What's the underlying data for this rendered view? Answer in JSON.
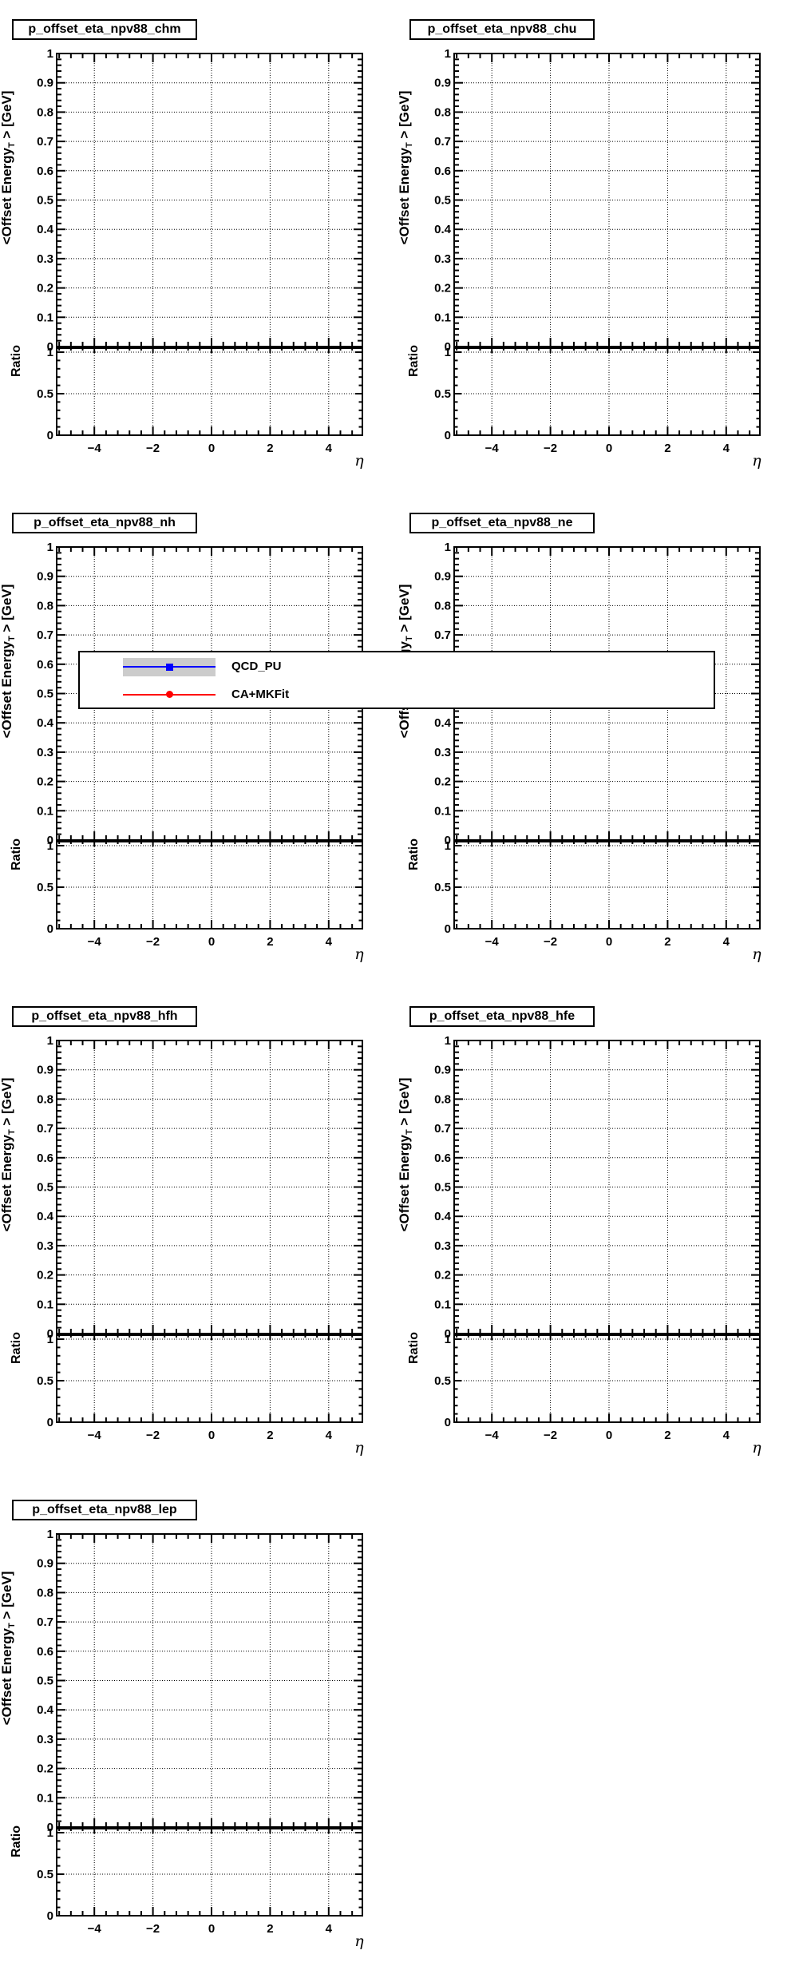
{
  "colors": {
    "background": "#ffffff",
    "frame": "#000000",
    "grid": "#000000",
    "qcd_pu": "#0000ff",
    "ca_mkfit": "#ff0000",
    "error_band": "#cccccc"
  },
  "axes": {
    "x": {
      "label": "η",
      "range": [
        -5.3,
        5.15
      ],
      "major_ticks": [
        -4,
        -2,
        0,
        2,
        4
      ],
      "tick_labels": [
        "−4",
        "−2",
        "0",
        "2",
        "4"
      ],
      "minor_step": 0.4
    },
    "main_y": {
      "label_pre": "<Offset Energy",
      "label_sub": "T",
      "label_post": " > [GeV]",
      "range": [
        0,
        1
      ],
      "tick_labels": [
        "0",
        "0.1",
        "0.2",
        "0.3",
        "0.4",
        "0.5",
        "0.6",
        "0.7",
        "0.8",
        "0.9",
        "1"
      ],
      "minor_step": 0.02
    },
    "ratio_y": {
      "label": "Ratio",
      "range": [
        0,
        1.05
      ],
      "major_ticks": [
        0,
        0.5,
        1
      ],
      "tick_labels": [
        "0",
        "0.5",
        "1"
      ],
      "minor_step": 0.1
    }
  },
  "legend": {
    "entries": [
      {
        "label": "QCD_PU",
        "color": "#0000ff",
        "marker": "square",
        "band_color": "#cccccc"
      },
      {
        "label": "CA+MKFit",
        "color": "#ff0000",
        "marker": "circle",
        "band_color": null
      }
    ]
  },
  "chart_data": [
    {
      "type": "line",
      "title": "p_offset_eta_npv88_chm",
      "xlabel": "η",
      "ylabel": "<Offset Energy_T> [GeV]",
      "xlim": [
        -5.3,
        5.15
      ],
      "ylim": [
        0,
        1
      ],
      "grid": true,
      "series": [
        {
          "name": "QCD_PU",
          "x": [],
          "y": []
        },
        {
          "name": "CA+MKFit",
          "x": [],
          "y": []
        }
      ],
      "ratio_panel": {
        "ylabel": "Ratio",
        "ylim": [
          0,
          1.05
        ],
        "yticks": [
          0,
          0.5,
          1
        ]
      }
    },
    {
      "type": "line",
      "title": "p_offset_eta_npv88_chu",
      "xlabel": "η",
      "ylabel": "<Offset Energy_T> [GeV]",
      "xlim": [
        -5.3,
        5.15
      ],
      "ylim": [
        0,
        1
      ],
      "grid": true,
      "series": [
        {
          "name": "QCD_PU",
          "x": [],
          "y": []
        },
        {
          "name": "CA+MKFit",
          "x": [],
          "y": []
        }
      ],
      "ratio_panel": {
        "ylabel": "Ratio",
        "ylim": [
          0,
          1.05
        ],
        "yticks": [
          0,
          0.5,
          1
        ]
      }
    },
    {
      "type": "line",
      "title": "p_offset_eta_npv88_nh",
      "xlabel": "η",
      "ylabel": "<Offset Energy_T> [GeV]",
      "xlim": [
        -5.3,
        5.15
      ],
      "ylim": [
        0,
        1
      ],
      "grid": true,
      "series": [
        {
          "name": "QCD_PU",
          "x": [],
          "y": []
        },
        {
          "name": "CA+MKFit",
          "x": [],
          "y": []
        }
      ],
      "ratio_panel": {
        "ylabel": "Ratio",
        "ylim": [
          0,
          1.05
        ],
        "yticks": [
          0,
          0.5,
          1
        ]
      }
    },
    {
      "type": "line",
      "title": "p_offset_eta_npv88_ne",
      "xlabel": "η",
      "ylabel": "<Offset Energy_T> [GeV]",
      "xlim": [
        -5.3,
        5.15
      ],
      "ylim": [
        0,
        1
      ],
      "grid": true,
      "series": [
        {
          "name": "QCD_PU",
          "x": [],
          "y": []
        },
        {
          "name": "CA+MKFit",
          "x": [],
          "y": []
        }
      ],
      "ratio_panel": {
        "ylabel": "Ratio",
        "ylim": [
          0,
          1.05
        ],
        "yticks": [
          0,
          0.5,
          1
        ]
      }
    },
    {
      "type": "line",
      "title": "p_offset_eta_npv88_hfh",
      "xlabel": "η",
      "ylabel": "<Offset Energy_T> [GeV]",
      "xlim": [
        -5.3,
        5.15
      ],
      "ylim": [
        0,
        1
      ],
      "grid": true,
      "series": [
        {
          "name": "QCD_PU",
          "x": [],
          "y": []
        },
        {
          "name": "CA+MKFit",
          "x": [],
          "y": []
        }
      ],
      "ratio_panel": {
        "ylabel": "Ratio",
        "ylim": [
          0,
          1.05
        ],
        "yticks": [
          0,
          0.5,
          1
        ]
      }
    },
    {
      "type": "line",
      "title": "p_offset_eta_npv88_hfe",
      "xlabel": "η",
      "ylabel": "<Offset Energy_T> [GeV]",
      "xlim": [
        -5.3,
        5.15
      ],
      "ylim": [
        0,
        1
      ],
      "grid": true,
      "series": [
        {
          "name": "QCD_PU",
          "x": [],
          "y": []
        },
        {
          "name": "CA+MKFit",
          "x": [],
          "y": []
        }
      ],
      "ratio_panel": {
        "ylabel": "Ratio",
        "ylim": [
          0,
          1.05
        ],
        "yticks": [
          0,
          0.5,
          1
        ]
      }
    },
    {
      "type": "line",
      "title": "p_offset_eta_npv88_lep",
      "xlabel": "η",
      "ylabel": "<Offset Energy_T> [GeV]",
      "xlim": [
        -5.3,
        5.15
      ],
      "ylim": [
        0,
        1
      ],
      "grid": true,
      "series": [
        {
          "name": "QCD_PU",
          "x": [],
          "y": []
        },
        {
          "name": "CA+MKFit",
          "x": [],
          "y": []
        }
      ],
      "ratio_panel": {
        "ylabel": "Ratio",
        "ylim": [
          0,
          1.05
        ],
        "yticks": [
          0,
          0.5,
          1
        ]
      }
    }
  ]
}
